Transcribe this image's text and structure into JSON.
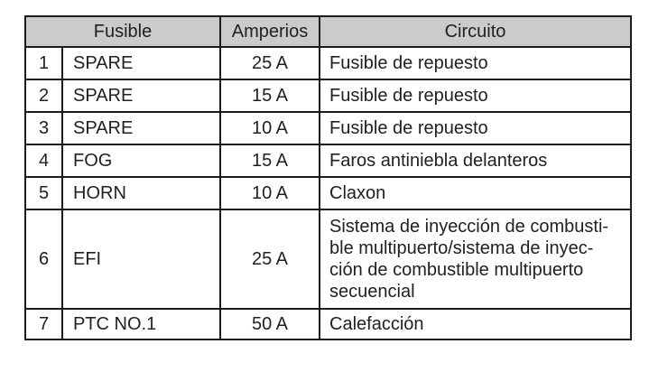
{
  "table": {
    "headers": {
      "fuse": "Fusible",
      "amps": "Amperios",
      "circuit": "Circuito"
    },
    "rows": [
      {
        "num": "1",
        "name": "SPARE",
        "amps": "25 A",
        "circuit": "Fusible de repuesto"
      },
      {
        "num": "2",
        "name": "SPARE",
        "amps": "15 A",
        "circuit": "Fusible de repuesto"
      },
      {
        "num": "3",
        "name": "SPARE",
        "amps": "10 A",
        "circuit": "Fusible de repuesto"
      },
      {
        "num": "4",
        "name": "FOG",
        "amps": "15 A",
        "circuit": "Faros antiniebla delanteros"
      },
      {
        "num": "5",
        "name": "HORN",
        "amps": "10 A",
        "circuit": "Claxon"
      },
      {
        "num": "6",
        "name": "EFI",
        "amps": "25 A",
        "circuit": "Sistema de inyección de combusti-\nble multipuerto/sistema de inyec-\nción de combustible multipuerto\nsecuencial"
      },
      {
        "num": "7",
        "name": "PTC NO.1",
        "amps": "50 A",
        "circuit": "Calefacción"
      }
    ],
    "colors": {
      "header_bg": "#cbcbcb",
      "border": "#1c1c1c",
      "text": "#212121"
    }
  }
}
